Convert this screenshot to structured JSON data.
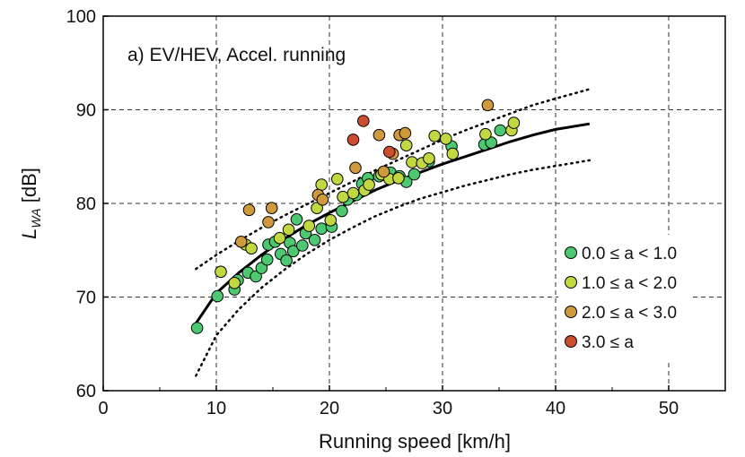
{
  "chart_data": {
    "type": "scatter",
    "title": "",
    "annotation": "a) EV/HEV, Accel. running",
    "xlabel": "Running speed [km/h]",
    "ylabel_main": "L",
    "ylabel_sub": "WA",
    "ylabel_unit": " [dB]",
    "xlim": [
      0,
      55
    ],
    "ylim": [
      60,
      100
    ],
    "xticks": [
      0,
      10,
      20,
      30,
      40,
      50
    ],
    "yticks": [
      60,
      70,
      80,
      90,
      100
    ],
    "grid": true,
    "legend_position": "right",
    "colors": {
      "s0": "#4cc970",
      "s1": "#c2d740",
      "s2": "#cf9a3b",
      "s3": "#cc4e2e",
      "fit": "#000000"
    },
    "series": [
      {
        "name": "0.0 ≤ a < 1.0",
        "color": "#4cc970",
        "points": [
          [
            8.3,
            66.7
          ],
          [
            10.1,
            70.1
          ],
          [
            11.6,
            70.8
          ],
          [
            11.9,
            71.8
          ],
          [
            12.8,
            72.6
          ],
          [
            13.5,
            72.2
          ],
          [
            14.0,
            73.1
          ],
          [
            14.5,
            74.0
          ],
          [
            14.6,
            75.6
          ],
          [
            15.2,
            75.9
          ],
          [
            15.7,
            74.6
          ],
          [
            16.2,
            73.9
          ],
          [
            16.5,
            75.8
          ],
          [
            16.8,
            74.9
          ],
          [
            17.1,
            78.3
          ],
          [
            17.6,
            75.5
          ],
          [
            17.9,
            76.8
          ],
          [
            18.7,
            76.1
          ],
          [
            19.3,
            77.3
          ],
          [
            20.2,
            77.5
          ],
          [
            21.1,
            79.2
          ],
          [
            21.6,
            80.4
          ],
          [
            22.4,
            80.9
          ],
          [
            22.9,
            82.1
          ],
          [
            23.4,
            82.7
          ],
          [
            24.4,
            82.9
          ],
          [
            25.4,
            83.3
          ],
          [
            26.2,
            82.9
          ],
          [
            26.8,
            82.3
          ],
          [
            27.5,
            83.1
          ],
          [
            28.8,
            84.5
          ],
          [
            30.8,
            86.1
          ],
          [
            33.7,
            86.3
          ],
          [
            34.3,
            86.5
          ],
          [
            35.1,
            87.8
          ]
        ]
      },
      {
        "name": "1.0 ≤ a < 2.0",
        "color": "#c2d740",
        "points": [
          [
            10.4,
            72.7
          ],
          [
            11.6,
            71.5
          ],
          [
            12.6,
            75.6
          ],
          [
            13.1,
            75.2
          ],
          [
            15.6,
            76.3
          ],
          [
            16.4,
            77.2
          ],
          [
            18.2,
            77.6
          ],
          [
            18.9,
            79.5
          ],
          [
            19.3,
            82.0
          ],
          [
            20.1,
            78.2
          ],
          [
            20.7,
            82.6
          ],
          [
            21.2,
            80.7
          ],
          [
            22.1,
            81.1
          ],
          [
            23.1,
            81.4
          ],
          [
            23.5,
            82.0
          ],
          [
            24.6,
            83.1
          ],
          [
            25.3,
            82.6
          ],
          [
            26.1,
            82.7
          ],
          [
            26.8,
            86.2
          ],
          [
            27.3,
            84.4
          ],
          [
            28.2,
            84.3
          ],
          [
            28.8,
            84.8
          ],
          [
            29.3,
            87.2
          ],
          [
            30.3,
            86.9
          ],
          [
            30.9,
            85.3
          ],
          [
            33.8,
            87.4
          ],
          [
            36.1,
            87.8
          ],
          [
            36.3,
            88.6
          ]
        ]
      },
      {
        "name": "2.0 ≤ a < 3.0",
        "color": "#cf9a3b",
        "points": [
          [
            12.2,
            75.9
          ],
          [
            12.9,
            79.3
          ],
          [
            14.6,
            78.0
          ],
          [
            14.9,
            79.5
          ],
          [
            19.0,
            80.9
          ],
          [
            19.4,
            80.4
          ],
          [
            22.3,
            83.8
          ],
          [
            24.4,
            87.3
          ],
          [
            24.8,
            83.4
          ],
          [
            25.6,
            85.3
          ],
          [
            26.2,
            87.3
          ],
          [
            26.7,
            87.5
          ],
          [
            34.0,
            90.5
          ]
        ]
      },
      {
        "name": "3.0 ≤ a",
        "color": "#cc4e2e",
        "points": [
          [
            22.1,
            86.8
          ],
          [
            23.0,
            88.8
          ],
          [
            25.3,
            85.5
          ]
        ]
      }
    ],
    "fit_line": {
      "x": [
        8.2,
        10,
        12,
        14,
        16,
        18,
        20,
        22,
        24,
        26,
        28,
        30,
        32,
        34,
        36,
        38,
        40,
        43
      ],
      "y": [
        67.2,
        70.4,
        72.6,
        74.5,
        76.2,
        77.7,
        79.0,
        80.2,
        81.4,
        82.4,
        83.3,
        84.2,
        85.0,
        85.8,
        86.6,
        87.3,
        87.9,
        88.5
      ]
    },
    "upper_band": {
      "x": [
        8.2,
        10,
        12,
        14,
        16,
        18,
        20,
        22,
        24,
        26,
        28,
        30,
        32,
        34,
        36,
        38,
        40,
        43
      ],
      "y": [
        73.0,
        74.5,
        76.0,
        77.4,
        78.7,
        79.9,
        81.1,
        82.3,
        83.5,
        84.6,
        85.7,
        86.8,
        87.8,
        88.7,
        89.6,
        90.5,
        91.2,
        92.2
      ]
    },
    "lower_band": {
      "x": [
        8.2,
        10,
        12,
        14,
        16,
        18,
        20,
        22,
        24,
        26,
        28,
        30,
        32,
        34,
        36,
        38,
        40,
        43
      ],
      "y": [
        61.6,
        65.9,
        68.7,
        71.0,
        72.9,
        74.6,
        76.1,
        77.4,
        78.6,
        79.6,
        80.5,
        81.2,
        81.9,
        82.5,
        83.1,
        83.6,
        84.0,
        84.6
      ]
    }
  }
}
